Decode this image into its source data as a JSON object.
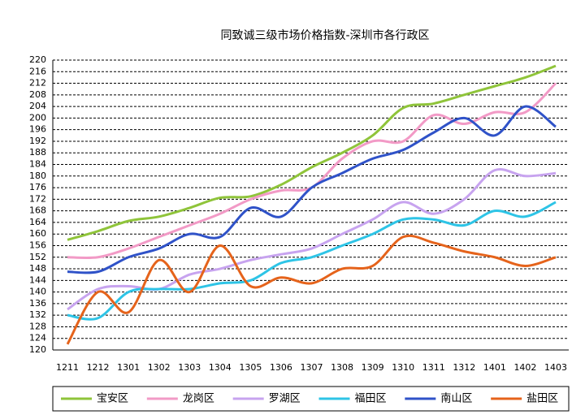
{
  "chart_data": {
    "type": "line",
    "title": "同致诚三级市场价格指数-深圳市各行政区",
    "categories": [
      "1211",
      "1212",
      "1301",
      "1302",
      "1303",
      "1304",
      "1305",
      "1306",
      "1307",
      "1308",
      "1309",
      "1310",
      "1311",
      "1312",
      "1401",
      "1402",
      "1403"
    ],
    "ylim": [
      120,
      220
    ],
    "yticks": [
      120,
      124,
      128,
      132,
      136,
      140,
      144,
      148,
      152,
      156,
      160,
      164,
      168,
      172,
      176,
      180,
      184,
      188,
      192,
      196,
      200,
      204,
      208,
      212,
      216,
      220
    ],
    "grid": true,
    "legend": "bottom",
    "series": [
      {
        "name": "宝安区",
        "color": "#8fc43a",
        "values": [
          158,
          161,
          164.5,
          166,
          169,
          172.5,
          173,
          177,
          183,
          188,
          194,
          203.5,
          205,
          208,
          211,
          214,
          218
        ]
      },
      {
        "name": "龙岗区",
        "color": "#f29ac6",
        "values": [
          152,
          152,
          155,
          159,
          163,
          167,
          172,
          175,
          176,
          186,
          192,
          192,
          201,
          198,
          202,
          202,
          212
        ]
      },
      {
        "name": "罗湖区",
        "color": "#c7a3ef",
        "values": [
          134,
          141,
          142,
          141,
          146,
          148,
          151,
          153,
          155,
          160,
          165,
          171,
          167,
          172,
          182,
          180,
          181
        ]
      },
      {
        "name": "福田区",
        "color": "#2ec4e6",
        "values": [
          132,
          131,
          140,
          141,
          141,
          143,
          144,
          150,
          152,
          156,
          160,
          165,
          165,
          163,
          168,
          166,
          171
        ]
      },
      {
        "name": "南山区",
        "color": "#2f52c8",
        "values": [
          147,
          147,
          152,
          155,
          160,
          159,
          169,
          166,
          176,
          181,
          186,
          189,
          195,
          200,
          194,
          204,
          197
        ]
      },
      {
        "name": "盐田区",
        "color": "#e5631b",
        "values": [
          122,
          140,
          133,
          151,
          140,
          156,
          142,
          145,
          143,
          148,
          149,
          159,
          157,
          154,
          152,
          149,
          152
        ]
      }
    ]
  }
}
